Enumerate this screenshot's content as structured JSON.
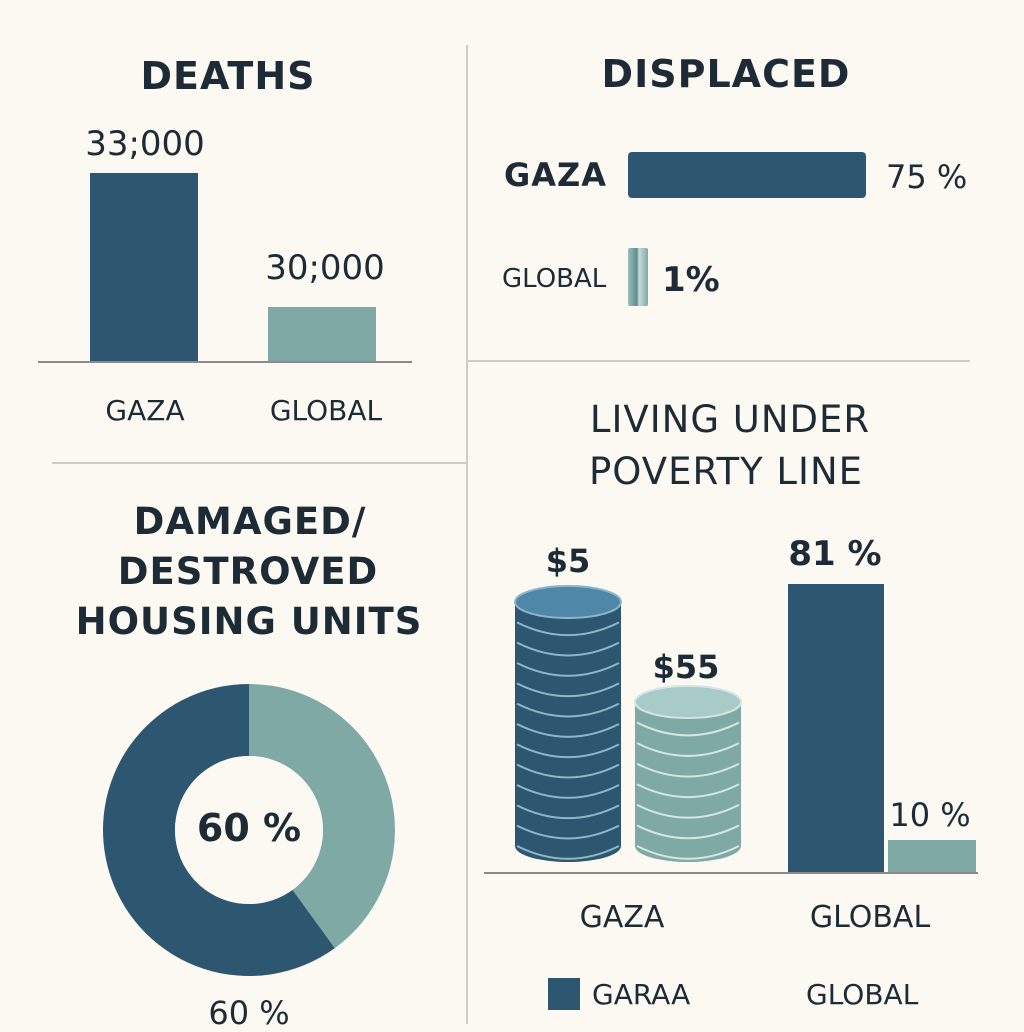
{
  "colors": {
    "dark": "#2d5670",
    "light": "#7fa9a4",
    "background": "#fbf9f1",
    "text": "#1d2b36",
    "divider": "#cfcdc3"
  },
  "deaths": {
    "title": "DEATHS",
    "chart_data": {
      "type": "bar",
      "categories": [
        "GAZA",
        "GLOBAL"
      ],
      "values": [
        33000,
        30000
      ],
      "value_labels": [
        "33;000",
        "30;000"
      ]
    }
  },
  "displaced": {
    "title": "DISPLACED",
    "chart_data": {
      "type": "bar",
      "orientation": "horizontal",
      "categories": [
        "GAZA",
        "GLOBAL"
      ],
      "values": [
        75,
        1
      ],
      "value_labels": [
        "75 %",
        "1%"
      ]
    }
  },
  "housing": {
    "title_lines": [
      "DAMAGED/",
      "DESTROVED",
      "HOUSING UNITS"
    ],
    "chart_data": {
      "type": "pie",
      "labels": [
        "",
        ""
      ],
      "values": [
        60,
        40
      ],
      "center_label": "60 %",
      "bottom_label": "60 %"
    }
  },
  "poverty": {
    "title_lines": [
      "LIVING UNDER",
      "POVERTY LINE"
    ],
    "chart_data": {
      "type": "bar",
      "categories": [
        "GAZA",
        "GLOBAL"
      ],
      "stacks": {
        "value_labels": [
          "$5",
          "$55"
        ]
      },
      "bars": {
        "values": [
          81,
          10
        ],
        "value_labels": [
          "81 %",
          "10 %"
        ]
      }
    },
    "legend": [
      "GARAA",
      "GLOBAL"
    ]
  }
}
